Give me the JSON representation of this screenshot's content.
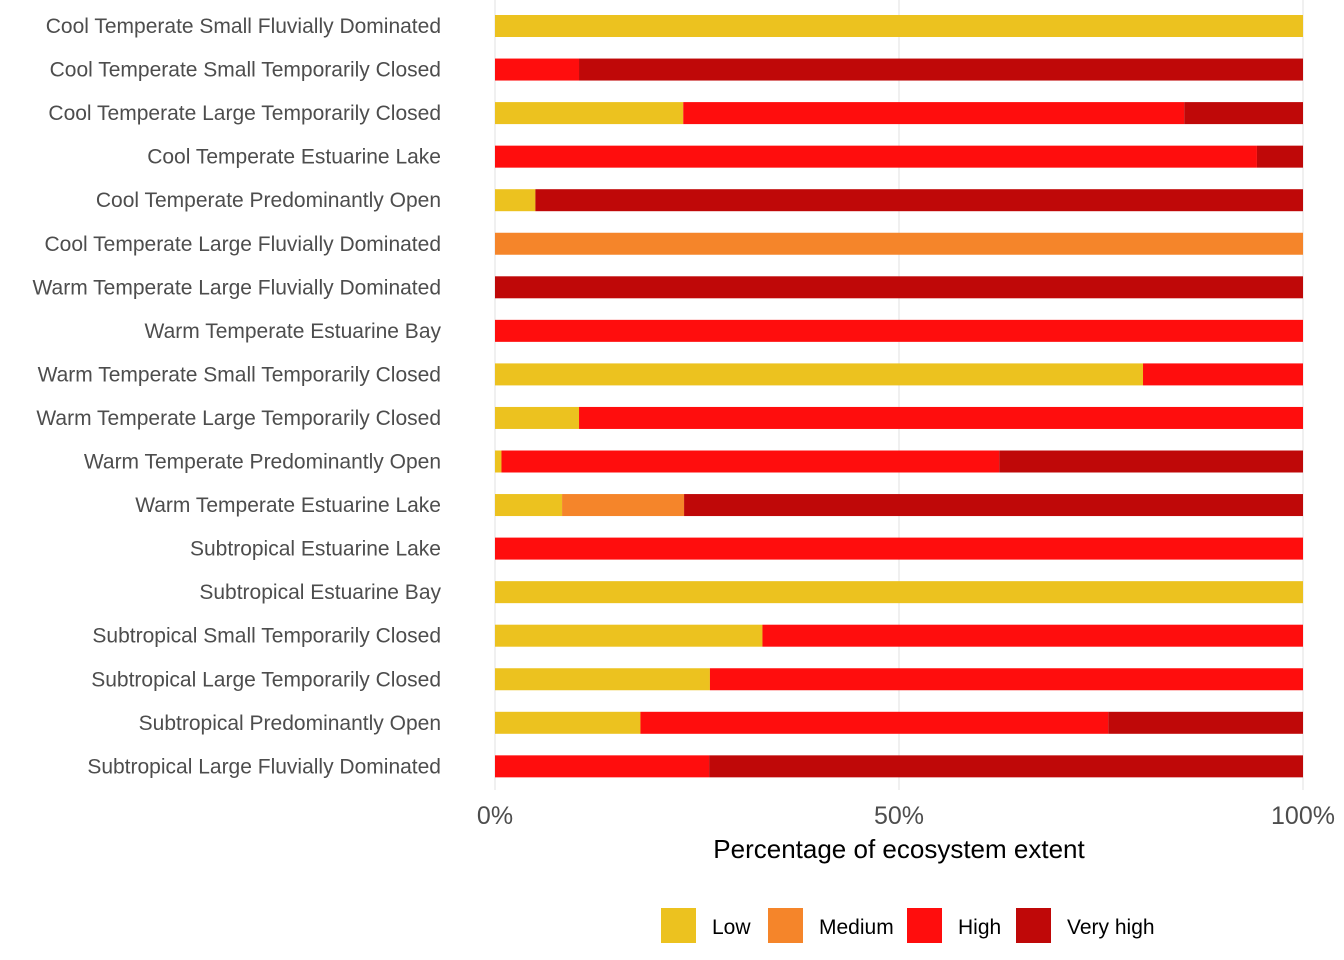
{
  "chart_data": {
    "type": "bar",
    "orientation": "horizontal",
    "stacked": true,
    "title": "",
    "xlabel": "Percentage of ecosystem extent",
    "ylabel": "",
    "xlim": [
      0,
      100
    ],
    "x_ticks": [
      0,
      50,
      100
    ],
    "x_tick_labels": [
      "0%",
      "50%",
      "100%"
    ],
    "grid": true,
    "legend_position": "bottom",
    "categories": [
      "Cool Temperate Small Fluvially Dominated",
      "Cool Temperate Small Temporarily Closed",
      "Cool Temperate Large Temporarily Closed",
      "Cool Temperate Estuarine Lake",
      "Cool Temperate Predominantly Open",
      "Cool Temperate Large Fluvially Dominated",
      "Warm Temperate Large Fluvially Dominated",
      "Warm Temperate Estuarine Bay",
      "Warm Temperate Small Temporarily Closed",
      "Warm Temperate Large Temporarily Closed",
      "Warm Temperate Predominantly Open",
      "Warm Temperate Estuarine Lake",
      "Subtropical Estuarine Lake",
      "Subtropical Estuarine Bay",
      "Subtropical Small Temporarily Closed",
      "Subtropical Large Temporarily Closed",
      "Subtropical Predominantly Open",
      "Subtropical Large Fluvially Dominated"
    ],
    "series": [
      {
        "name": "Low",
        "color": "#ECC21F",
        "values": [
          100,
          0,
          23.3,
          0,
          5,
          0,
          0,
          0,
          80.2,
          10.4,
          0.8,
          8.3,
          0,
          100,
          33.1,
          26.6,
          18,
          0
        ]
      },
      {
        "name": "Medium",
        "color": "#F5852A",
        "values": [
          0,
          0,
          0,
          0,
          0,
          100,
          0,
          0,
          0,
          0,
          0,
          15.1,
          0,
          0,
          0,
          0,
          0,
          0
        ]
      },
      {
        "name": "High",
        "color": "#FF0D0D",
        "values": [
          0,
          10.4,
          62,
          94.3,
          0,
          0,
          0,
          100,
          19.8,
          89.6,
          61.6,
          0,
          100,
          0,
          66.9,
          73.4,
          57.9,
          26.5
        ]
      },
      {
        "name": "Very high",
        "color": "#BF0808",
        "values": [
          0,
          89.6,
          14.7,
          5.7,
          95,
          0,
          100,
          0,
          0,
          0,
          37.6,
          76.6,
          0,
          0,
          0,
          0,
          24.1,
          73.5
        ]
      }
    ]
  }
}
